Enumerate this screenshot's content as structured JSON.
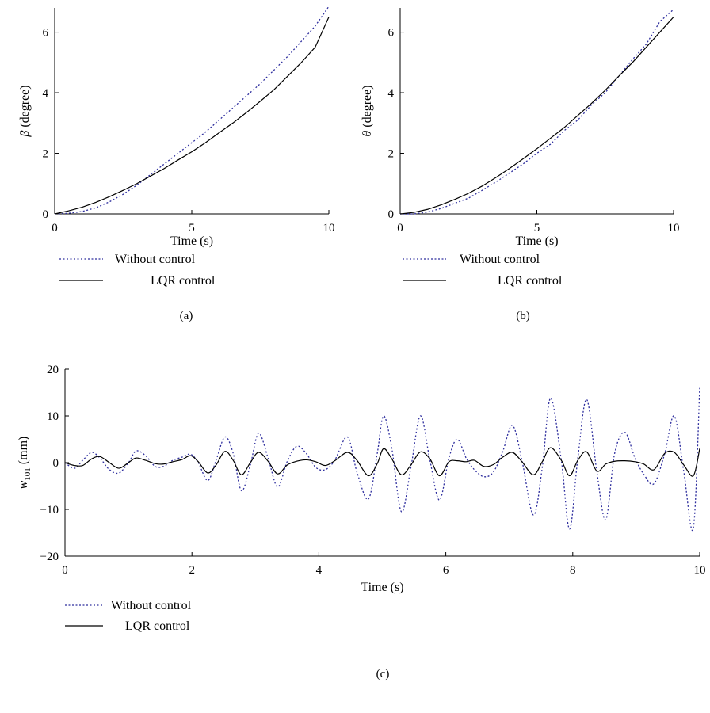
{
  "colors": {
    "without": "#2e2e9e",
    "lqr": "#000000"
  },
  "chart_data": [
    {
      "panel": "(a)",
      "type": "line",
      "ylabel_symbol": "β",
      "ylabel_unit": "(degree)",
      "xlabel": "Time (s)",
      "xlim": [
        0,
        10
      ],
      "ylim": [
        0,
        6.8
      ],
      "xticks": [
        0,
        5,
        10
      ],
      "yticks": [
        0,
        2,
        4,
        6
      ],
      "legend": [
        "Without control",
        "LQR control"
      ],
      "series": [
        {
          "name": "Without control",
          "style": "dotted",
          "x": [
            0,
            0.5,
            1,
            1.5,
            2,
            2.5,
            3,
            3.5,
            4,
            4.5,
            5,
            5.5,
            6,
            6.5,
            7,
            7.5,
            8,
            8.5,
            9,
            9.5,
            10
          ],
          "y": [
            0,
            0.02,
            0.08,
            0.2,
            0.4,
            0.65,
            0.95,
            1.3,
            1.65,
            2.0,
            2.35,
            2.7,
            3.1,
            3.5,
            3.9,
            4.3,
            4.75,
            5.2,
            5.7,
            6.2,
            6.85
          ]
        },
        {
          "name": "LQR control",
          "style": "solid",
          "x": [
            0,
            0.5,
            1,
            1.5,
            2,
            2.5,
            3,
            3.5,
            4,
            4.5,
            5,
            5.5,
            6,
            6.5,
            7,
            7.5,
            8,
            8.5,
            9,
            9.5,
            10
          ],
          "y": [
            0,
            0.1,
            0.22,
            0.38,
            0.57,
            0.78,
            1.0,
            1.25,
            1.5,
            1.78,
            2.05,
            2.35,
            2.68,
            3.0,
            3.35,
            3.72,
            4.1,
            4.55,
            5.0,
            5.5,
            6.5
          ]
        }
      ]
    },
    {
      "panel": "(b)",
      "type": "line",
      "ylabel_symbol": "θ",
      "ylabel_unit": "(degree)",
      "xlabel": "Time (s)",
      "xlim": [
        0,
        10
      ],
      "ylim": [
        0,
        6.8
      ],
      "xticks": [
        0,
        5,
        10
      ],
      "yticks": [
        0,
        2,
        4,
        6
      ],
      "legend": [
        "Without control",
        "LQR control"
      ],
      "series": [
        {
          "name": "Without control",
          "style": "dotted",
          "x": [
            0,
            0.5,
            1,
            1.5,
            2,
            2.5,
            3,
            3.5,
            4,
            4.5,
            5,
            5.5,
            6,
            6.5,
            7,
            7.5,
            8,
            8.5,
            9,
            9.5,
            10
          ],
          "y": [
            0,
            0.0,
            0.06,
            0.18,
            0.35,
            0.52,
            0.78,
            1.05,
            1.35,
            1.65,
            2.0,
            2.3,
            2.75,
            3.1,
            3.6,
            4.0,
            4.55,
            5.1,
            5.6,
            6.35,
            6.75
          ]
        },
        {
          "name": "LQR control",
          "style": "solid",
          "x": [
            0,
            0.5,
            1,
            1.5,
            2,
            2.5,
            3,
            3.5,
            4,
            4.5,
            5,
            5.5,
            6,
            6.5,
            7,
            7.5,
            8,
            8.5,
            9,
            9.5,
            10
          ],
          "y": [
            0,
            0.05,
            0.15,
            0.3,
            0.48,
            0.68,
            0.92,
            1.2,
            1.5,
            1.82,
            2.15,
            2.5,
            2.85,
            3.25,
            3.65,
            4.08,
            4.55,
            5.0,
            5.5,
            6.0,
            6.5
          ]
        }
      ]
    },
    {
      "panel": "(c)",
      "type": "line",
      "ylabel_symbol": "w",
      "ylabel_sub": "101",
      "ylabel_unit": "(mm)",
      "xlabel": "Time (s)",
      "xlim": [
        0,
        10
      ],
      "ylim": [
        -20,
        20
      ],
      "xticks": [
        0,
        2,
        4,
        6,
        8,
        10
      ],
      "yticks": [
        -20,
        -10,
        0,
        10,
        20
      ],
      "legend": [
        "Without control",
        "LQR control"
      ],
      "series": [
        {
          "name": "Without control",
          "style": "dotted",
          "x": [
            0,
            0.15,
            0.28,
            0.42,
            0.55,
            0.7,
            0.85,
            1.0,
            1.12,
            1.27,
            1.42,
            1.55,
            1.7,
            1.85,
            1.98,
            2.1,
            2.25,
            2.38,
            2.52,
            2.65,
            2.78,
            2.92,
            3.05,
            3.2,
            3.35,
            3.5,
            3.65,
            3.8,
            3.95,
            4.1,
            4.25,
            4.45,
            4.6,
            4.78,
            4.92,
            5.02,
            5.15,
            5.3,
            5.45,
            5.6,
            5.75,
            5.9,
            6.05,
            6.18,
            6.32,
            6.45,
            6.6,
            6.75,
            6.9,
            7.05,
            7.2,
            7.38,
            7.52,
            7.65,
            7.82,
            7.95,
            8.08,
            8.22,
            8.38,
            8.52,
            8.66,
            8.82,
            8.98,
            9.12,
            9.28,
            9.45,
            9.6,
            9.75,
            9.9,
            10
          ],
          "y": [
            0,
            -1.2,
            0.5,
            2.2,
            1.0,
            -1.5,
            -2.2,
            0,
            2.5,
            1.5,
            -0.8,
            -0.8,
            0.5,
            1.2,
            1.8,
            0,
            -3.8,
            0.5,
            5.5,
            2.0,
            -6.0,
            -0.5,
            6.3,
            1.0,
            -5.2,
            0.2,
            3.5,
            2.0,
            -1.0,
            -1.5,
            0.5,
            5.5,
            -2.0,
            -7.8,
            2.0,
            10.0,
            3.0,
            -10.5,
            -1.0,
            10.0,
            0.5,
            -8.0,
            1.0,
            5.0,
            1.0,
            -1.5,
            -3.0,
            -2.0,
            2.5,
            8.0,
            0.5,
            -11.2,
            -1.0,
            13.8,
            0.5,
            -14.2,
            1.0,
            13.5,
            -2.0,
            -12.2,
            2.0,
            6.5,
            1.0,
            -2.5,
            -4.5,
            2.0,
            10.0,
            -2.0,
            -14.0,
            16.0
          ]
        },
        {
          "name": "LQR control",
          "style": "solid",
          "x": [
            0,
            0.15,
            0.28,
            0.42,
            0.55,
            0.7,
            0.85,
            1.0,
            1.12,
            1.27,
            1.42,
            1.55,
            1.7,
            1.85,
            1.98,
            2.1,
            2.25,
            2.38,
            2.52,
            2.65,
            2.78,
            2.92,
            3.05,
            3.2,
            3.35,
            3.5,
            3.65,
            3.8,
            3.95,
            4.1,
            4.25,
            4.45,
            4.6,
            4.78,
            4.92,
            5.02,
            5.15,
            5.3,
            5.45,
            5.6,
            5.75,
            5.9,
            6.05,
            6.18,
            6.32,
            6.45,
            6.6,
            6.75,
            6.9,
            7.05,
            7.2,
            7.38,
            7.52,
            7.65,
            7.82,
            7.95,
            8.08,
            8.22,
            8.38,
            8.52,
            8.66,
            8.82,
            8.98,
            9.12,
            9.28,
            9.45,
            9.6,
            9.75,
            9.9,
            10
          ],
          "y": [
            0,
            -0.6,
            -0.6,
            0.8,
            1.3,
            0,
            -1.2,
            0,
            1.0,
            0.5,
            -0.2,
            -0.3,
            0.2,
            0.7,
            1.5,
            0.2,
            -2.2,
            -0.5,
            2.4,
            0.5,
            -2.6,
            0,
            2.2,
            0.3,
            -2.4,
            -0.5,
            0.3,
            0.6,
            0.2,
            -0.6,
            0.4,
            2.2,
            0.5,
            -2.8,
            -0.2,
            3.0,
            0.8,
            -2.6,
            -0.5,
            2.3,
            0.8,
            -2.8,
            0.2,
            0.4,
            0.2,
            0.5,
            -0.8,
            -0.4,
            1.2,
            2.2,
            0.2,
            -2.6,
            0.2,
            3.2,
            0.5,
            -2.8,
            0.5,
            2.3,
            -1.8,
            -0.3,
            0.3,
            0.4,
            0.2,
            -0.3,
            -1.5,
            2.0,
            2.2,
            -0.5,
            -2.8,
            3.0
          ]
        }
      ]
    }
  ]
}
